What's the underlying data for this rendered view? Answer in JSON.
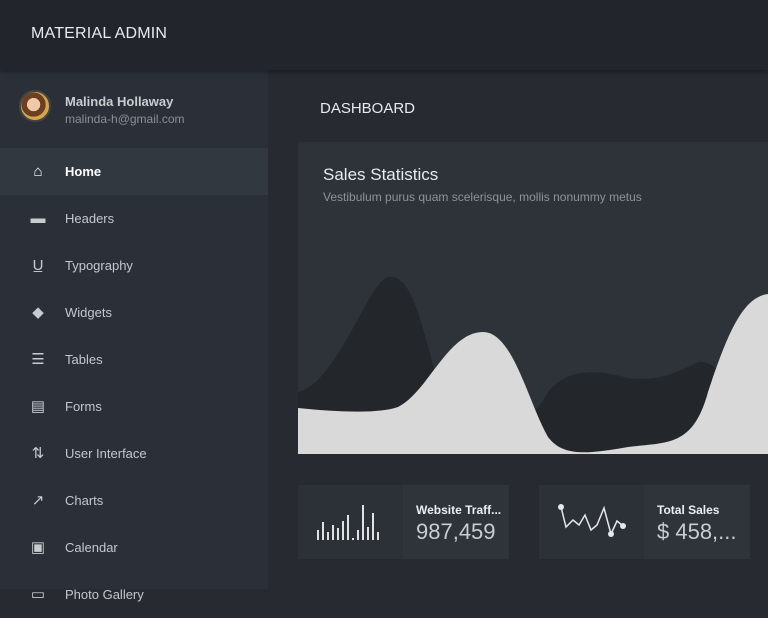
{
  "app": {
    "title": "MATERIAL ADMIN"
  },
  "user": {
    "name": "Malinda Hollaway",
    "email": "malinda-h@gmail.com"
  },
  "sidebar": {
    "items": [
      {
        "label": "Home",
        "icon": "home-icon",
        "active": true
      },
      {
        "label": "Headers",
        "icon": "headers-icon"
      },
      {
        "label": "Typography",
        "icon": "typography-icon"
      },
      {
        "label": "Widgets",
        "icon": "widgets-icon"
      },
      {
        "label": "Tables",
        "icon": "tables-icon"
      },
      {
        "label": "Forms",
        "icon": "forms-icon"
      },
      {
        "label": "User Interface",
        "icon": "user-interface-icon"
      },
      {
        "label": "Charts",
        "icon": "charts-icon"
      },
      {
        "label": "Calendar",
        "icon": "calendar-icon"
      },
      {
        "label": "Photo Gallery",
        "icon": "photo-gallery-icon"
      }
    ]
  },
  "main": {
    "heading": "DASHBOARD"
  },
  "sales": {
    "title": "Sales Statistics",
    "subtitle": "Vestibulum purus quam scelerisque, mollis nonummy metus"
  },
  "stats": [
    {
      "title": "Website Traff...",
      "value": "987,459",
      "icon": "bar-sparkline-icon"
    },
    {
      "title": "Total Sales",
      "value": "$ 458,...",
      "icon": "line-sparkline-icon"
    }
  ],
  "colors": {
    "topbar": "#22252b",
    "sidebar": "#2b3038",
    "card": "#2e333a",
    "area_light": "#d8d9d8",
    "area_dark": "#23272c"
  }
}
